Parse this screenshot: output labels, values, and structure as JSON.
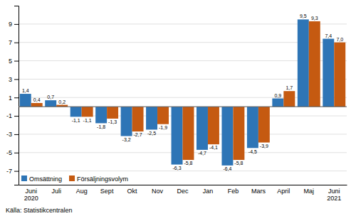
{
  "chart_data": {
    "type": "bar",
    "categories": [
      "Juni\n2020",
      "Juli",
      "Aug",
      "Sept",
      "Okt",
      "Nov",
      "Dec",
      "Jan",
      "Feb",
      "Mars",
      "April",
      "Maj",
      "Juni\n2021"
    ],
    "series": [
      {
        "name": "Omsättning",
        "color": "#2e75b6",
        "values": [
          1.4,
          0.7,
          -1.1,
          -1.8,
          -3.2,
          -2.5,
          -6.3,
          -4.7,
          -6.4,
          -4.5,
          0.9,
          9.5,
          7.4
        ],
        "value_labels": [
          "1,4",
          "0,7",
          "-1,1",
          "-1,8",
          "-3,2",
          "-2,5",
          "-6,3",
          "-4,7",
          "-6,4",
          "-4,5",
          "0,9",
          "9,5",
          "7,4"
        ]
      },
      {
        "name": "Försäljningsvolym",
        "color": "#c55a11",
        "values": [
          0.4,
          0.2,
          -1.1,
          -1.3,
          -2.7,
          -1.9,
          -5.8,
          -4.1,
          -5.8,
          -3.9,
          1.7,
          9.3,
          7.0
        ],
        "value_labels": [
          "0,4",
          "0,2",
          "-1,1",
          "-1,3",
          "-2,7",
          "-1,9",
          "-5,8",
          "-4,1",
          "-5,8",
          "-3,9",
          "1,7",
          "9,3",
          "7,0"
        ]
      }
    ],
    "ylim": [
      -8.5,
      11.0
    ],
    "yticks": [
      -7,
      -5,
      -3,
      -1,
      1,
      3,
      5,
      7,
      9
    ],
    "grid": true,
    "legend": "lower left",
    "data_labels": true,
    "annotations": [
      "Källa: Statistikcentralen"
    ]
  }
}
